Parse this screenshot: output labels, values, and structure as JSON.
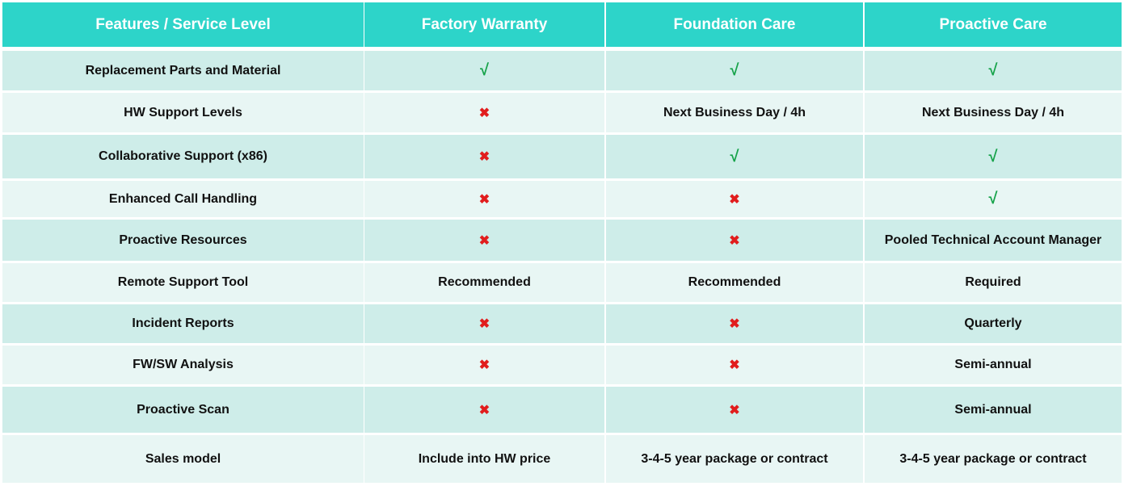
{
  "colors": {
    "header": "#2dd4c9",
    "row_dark": "#ceede9",
    "row_light": "#e8f6f4",
    "check": "#16a34a",
    "cross": "#e11d1d"
  },
  "icons": {
    "yes": "check-icon",
    "no": "cross-icon"
  },
  "headers": [
    "Features / Service Level",
    "Factory Warranty",
    "Foundation Care",
    "Proactive Care"
  ],
  "rows": [
    {
      "feature": "Replacement Parts and Material",
      "cells": [
        "check",
        "check",
        "check"
      ]
    },
    {
      "feature": "HW Support Levels",
      "cells": [
        "cross",
        "Next Business Day / 4h",
        "Next Business Day / 4h"
      ]
    },
    {
      "feature": "Collaborative Support (x86)",
      "cells": [
        "cross",
        "check",
        "check"
      ]
    },
    {
      "feature": "Enhanced Call Handling",
      "cells": [
        "cross",
        "cross",
        "check"
      ]
    },
    {
      "feature": "Proactive Resources",
      "cells": [
        "cross",
        "cross",
        "Pooled Technical Account Manager"
      ]
    },
    {
      "feature": "Remote Support Tool",
      "cells": [
        "Recommended",
        "Recommended",
        "Required"
      ]
    },
    {
      "feature": "Incident Reports",
      "cells": [
        "cross",
        "cross",
        "Quarterly"
      ]
    },
    {
      "feature": "FW/SW Analysis",
      "cells": [
        "cross",
        "cross",
        "Semi-annual"
      ]
    },
    {
      "feature": "Proactive Scan",
      "cells": [
        "cross",
        "cross",
        "Semi-annual"
      ]
    },
    {
      "feature": "Sales model",
      "cells": [
        "Include into HW price",
        "3-4-5 year package or contract",
        "3-4-5 year package or contract"
      ]
    }
  ]
}
